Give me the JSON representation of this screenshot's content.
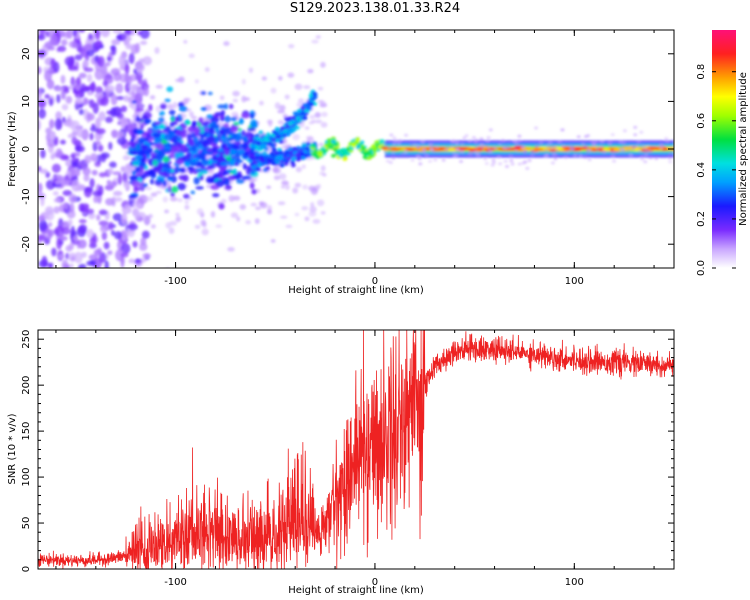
{
  "title": "S129.2023.138.01.33.R24",
  "colors": {
    "snr_line": "#ee2222",
    "background": "#ffffff",
    "axis": "#000000"
  },
  "chart_data": [
    {
      "type": "heatmap",
      "xlabel": "Height of straight line (km)",
      "ylabel": "Frequency (Hz)",
      "xlim": [
        -169,
        150
      ],
      "ylim": [
        -25,
        25
      ],
      "x_ticks": [
        -100,
        0,
        100
      ],
      "y_ticks": [
        -20,
        -10,
        0,
        10,
        20
      ],
      "grid": false,
      "colorbar": {
        "label": "Normalized spectral amplitude",
        "range": [
          0,
          0.97
        ],
        "ticks": [
          "0.0",
          "0.2",
          "0.4",
          "0.6",
          "0.8"
        ],
        "colormap": "rainbow (white → violet → blue → cyan → green → yellow → orange → red → magenta)"
      },
      "features": [
        {
          "region_km": [
            -169,
            -120
          ],
          "frequency_hz": [
            -25,
            25
          ],
          "amplitude": "low, scattered violet"
        },
        {
          "region_km": [
            -120,
            -60
          ],
          "frequency_hz": [
            -8,
            6
          ],
          "amplitude": "moderate, blue to cyan patches"
        },
        {
          "region_km": [
            -60,
            -30
          ],
          "frequency_hz": [
            -2,
            12
          ],
          "amplitude": "moderate, upward-curving trace"
        },
        {
          "region_km": [
            -30,
            5
          ],
          "frequency_hz": [
            -2,
            2
          ],
          "amplitude": "rising, wavy trace near 0 Hz"
        },
        {
          "region_km": [
            5,
            150
          ],
          "frequency_hz": [
            -1,
            1
          ],
          "amplitude": "high (~0.8-0.95), narrow line at 0 Hz"
        }
      ]
    },
    {
      "type": "line",
      "xlabel": "Height of straight line (km)",
      "ylabel": "SNR (10 * v/v)",
      "xlim": [
        -169,
        150
      ],
      "ylim": [
        0,
        260
      ],
      "x_ticks": [
        -100,
        0,
        100
      ],
      "y_ticks": [
        0,
        50,
        100,
        150,
        200,
        250
      ],
      "grid": false,
      "series": [
        {
          "x": [
            -169,
            -160,
            -150,
            -140,
            -130,
            -125,
            -120,
            -115,
            -110,
            -100,
            -90,
            -85,
            -80,
            -70,
            -60,
            -50,
            -45,
            -40,
            -35,
            -30,
            -25,
            -20,
            -15,
            -10,
            -5,
            0,
            5,
            10,
            15,
            20,
            25,
            30,
            40,
            50,
            60,
            70,
            80,
            90,
            100,
            110,
            120,
            130,
            140,
            150
          ],
          "y": [
            10,
            10,
            9,
            10,
            12,
            15,
            18,
            22,
            24,
            28,
            32,
            38,
            33,
            30,
            28,
            32,
            40,
            48,
            45,
            35,
            45,
            75,
            95,
            120,
            130,
            135,
            145,
            155,
            170,
            185,
            200,
            220,
            238,
            240,
            238,
            236,
            234,
            230,
            228,
            226,
            225,
            224,
            222,
            221
          ]
        }
      ]
    }
  ]
}
